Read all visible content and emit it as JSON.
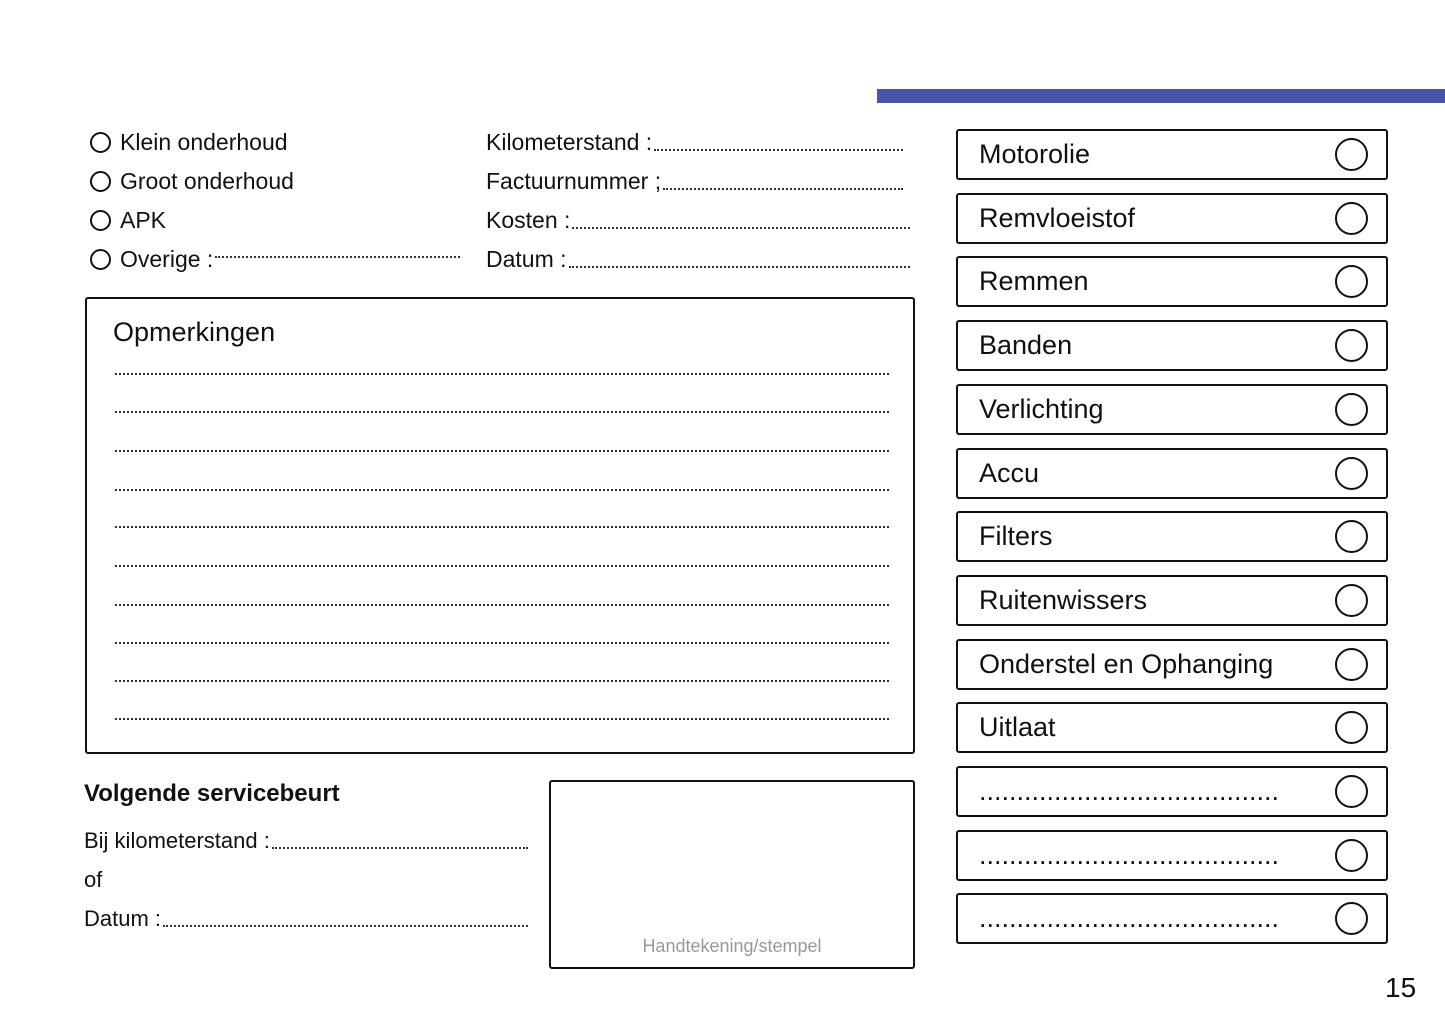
{
  "header": {
    "accent_color": "#4a54a6"
  },
  "service_types": [
    {
      "label": "Klein onderhoud",
      "checked": false
    },
    {
      "label": "Groot onderhoud",
      "checked": false
    },
    {
      "label": "APK",
      "checked": false
    },
    {
      "label": "Overige :",
      "checked": false
    }
  ],
  "fields": [
    {
      "label": "Kilometerstand :",
      "value": ""
    },
    {
      "label": "Factuurnummer ;",
      "value": ""
    },
    {
      "label": "Kosten :",
      "value": ""
    },
    {
      "label": "Datum :",
      "value": ""
    }
  ],
  "remarks": {
    "title": "Opmerkingen",
    "line_count": 10
  },
  "next_service": {
    "title": "Volgende servicebeurt",
    "km_label": "Bij kilometerstand :",
    "or_label": "of",
    "date_label": "Datum :"
  },
  "signature": {
    "label": "Handtekening/stempel"
  },
  "checklist": [
    {
      "label": "Motorolie",
      "checked": false
    },
    {
      "label": "Remvloeistof",
      "checked": false
    },
    {
      "label": "Remmen",
      "checked": false
    },
    {
      "label": "Banden",
      "checked": false
    },
    {
      "label": "Verlichting",
      "checked": false
    },
    {
      "label": "Accu",
      "checked": false
    },
    {
      "label": "Filters",
      "checked": false
    },
    {
      "label": "Ruitenwissers",
      "checked": false
    },
    {
      "label": "Onderstel en Ophanging",
      "checked": false
    },
    {
      "label": "Uitlaat",
      "checked": false
    },
    {
      "label": "........................................",
      "checked": false
    },
    {
      "label": "........................................",
      "checked": false
    },
    {
      "label": "........................................",
      "checked": false
    }
  ],
  "page_number": "15"
}
